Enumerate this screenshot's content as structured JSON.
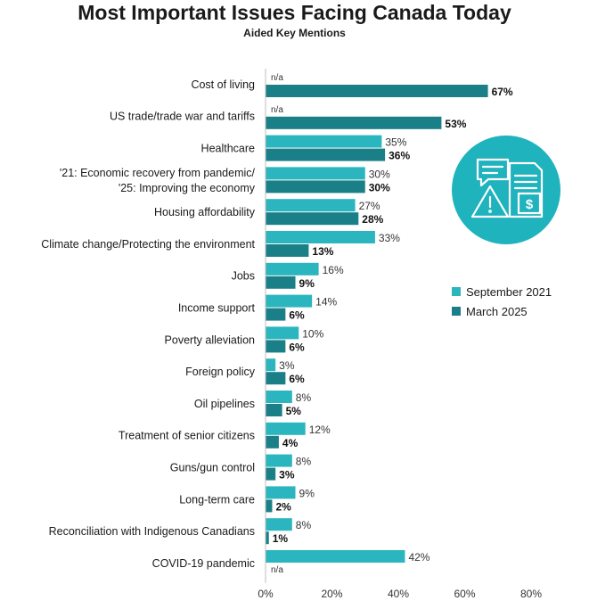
{
  "chart_data": {
    "type": "bar",
    "orientation": "horizontal",
    "title": "Most Important Issues Facing Canada Today",
    "subtitle": "Aided Key Mentions",
    "categories": [
      "Cost of living",
      "US trade/trade war and tariffs",
      "Healthcare",
      "'21: Economic recovery from pandemic/\n'25: Improving the economy",
      "Housing affordability",
      "Climate change/Protecting the environment",
      "Jobs",
      "Income support",
      "Poverty alleviation",
      "Foreign policy",
      "Oil pipelines",
      "Treatment of senior citizens",
      "Guns/gun control",
      "Long-term care",
      "Reconciliation with Indigenous Canadians",
      "COVID-19 pandemic"
    ],
    "series": [
      {
        "name": "September 2021",
        "color": "#2bb5bf",
        "values": [
          null,
          null,
          35,
          30,
          27,
          33,
          16,
          14,
          10,
          3,
          8,
          12,
          8,
          9,
          8,
          42
        ]
      },
      {
        "name": "March 2025",
        "color": "#1a7f86",
        "values": [
          67,
          53,
          36,
          30,
          28,
          13,
          9,
          6,
          6,
          6,
          5,
          4,
          3,
          2,
          1,
          null
        ]
      }
    ],
    "missing_label": "n/a",
    "value_suffix": "%",
    "xlim": [
      0,
      80
    ],
    "xticks": [
      "0%",
      "20%",
      "40%",
      "60%",
      "80%"
    ],
    "legend_position": "right"
  },
  "icon": "chat-document-warning-dollar-icon"
}
